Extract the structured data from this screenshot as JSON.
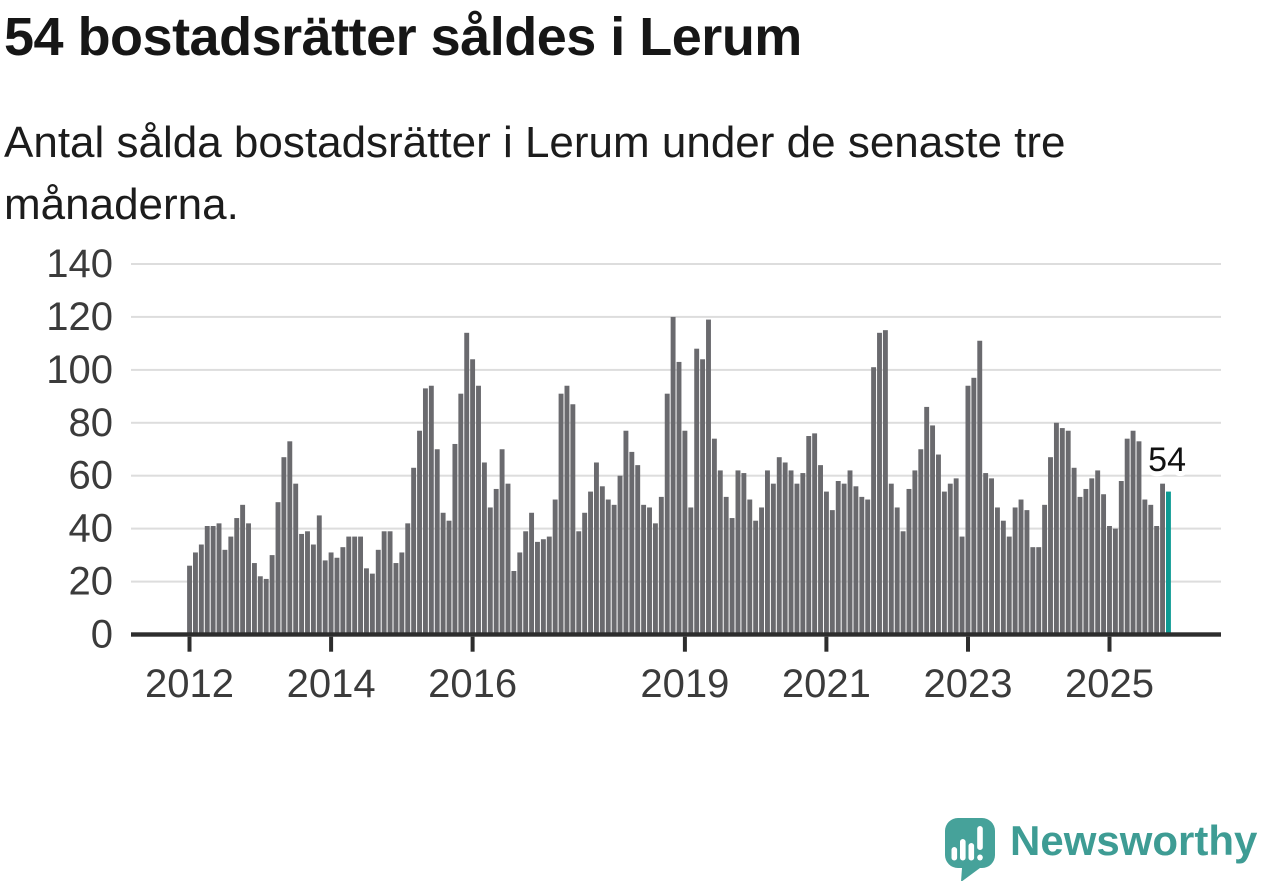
{
  "header": {
    "title": "54 bostadsrätter såldes i Lerum",
    "subtitle": "Antal sålda bostadsrätter i Lerum under de senaste tre\nmånaderna."
  },
  "footer": {
    "brand": "Newsworthy"
  },
  "colors": {
    "bar": "#6a6a6e",
    "highlight": "#0d9a93",
    "grid": "#dddddd",
    "axis": "#2d2d2d",
    "axis_text": "#3b3b3b",
    "data_label": "#111111",
    "logo_teal": "#46a29a",
    "wordmark_teal": "#3e9c94"
  },
  "chart_data": {
    "type": "bar",
    "title": "54 bostadsrätter såldes i Lerum",
    "subtitle": "Antal sålda bostadsrätter i Lerum under de senaste tre månaderna.",
    "x_unit": "månad",
    "x_start": "2012-01",
    "x_end": "2025-11",
    "ylim": [
      0,
      140
    ],
    "ytick_labels": [
      "0",
      "20",
      "40",
      "60",
      "80",
      "100",
      "120",
      "140"
    ],
    "yticks": [
      0,
      20,
      40,
      60,
      80,
      100,
      120,
      140
    ],
    "grid": true,
    "legend": "none",
    "xticks": [
      {
        "label": "2012",
        "month_index": 0
      },
      {
        "label": "2014",
        "month_index": 24
      },
      {
        "label": "2016",
        "month_index": 48
      },
      {
        "label": "2019",
        "month_index": 84
      },
      {
        "label": "2021",
        "month_index": 108
      },
      {
        "label": "2023",
        "month_index": 132
      },
      {
        "label": "2025",
        "month_index": 156
      }
    ],
    "highlight": {
      "index": 166,
      "month": "2025-11",
      "value": 54,
      "label": "54"
    },
    "values": [
      26,
      31,
      34,
      41,
      41,
      42,
      32,
      37,
      44,
      49,
      42,
      27,
      22,
      21,
      30,
      50,
      67,
      73,
      57,
      38,
      39,
      34,
      45,
      28,
      31,
      29,
      33,
      37,
      37,
      37,
      25,
      23,
      32,
      39,
      39,
      27,
      31,
      42,
      63,
      77,
      93,
      94,
      70,
      46,
      43,
      72,
      91,
      114,
      104,
      94,
      65,
      48,
      55,
      70,
      57,
      24,
      31,
      39,
      46,
      35,
      36,
      37,
      51,
      91,
      94,
      87,
      39,
      46,
      54,
      65,
      56,
      51,
      49,
      60,
      77,
      69,
      64,
      49,
      48,
      42,
      52,
      91,
      120,
      103,
      77,
      48,
      108,
      104,
      119,
      74,
      62,
      52,
      44,
      62,
      61,
      51,
      43,
      48,
      62,
      57,
      67,
      65,
      62,
      57,
      61,
      75,
      76,
      64,
      54,
      47,
      58,
      57,
      62,
      56,
      52,
      51,
      101,
      114,
      115,
      57,
      48,
      39,
      55,
      62,
      70,
      86,
      79,
      68,
      54,
      57,
      59,
      37,
      94,
      97,
      111,
      61,
      59,
      48,
      43,
      37,
      48,
      51,
      47,
      33,
      33,
      49,
      67,
      80,
      78,
      77,
      63,
      52,
      55,
      59,
      62,
      53,
      41,
      40,
      58,
      74,
      77,
      73,
      51,
      49,
      41,
      57,
      54
    ]
  }
}
